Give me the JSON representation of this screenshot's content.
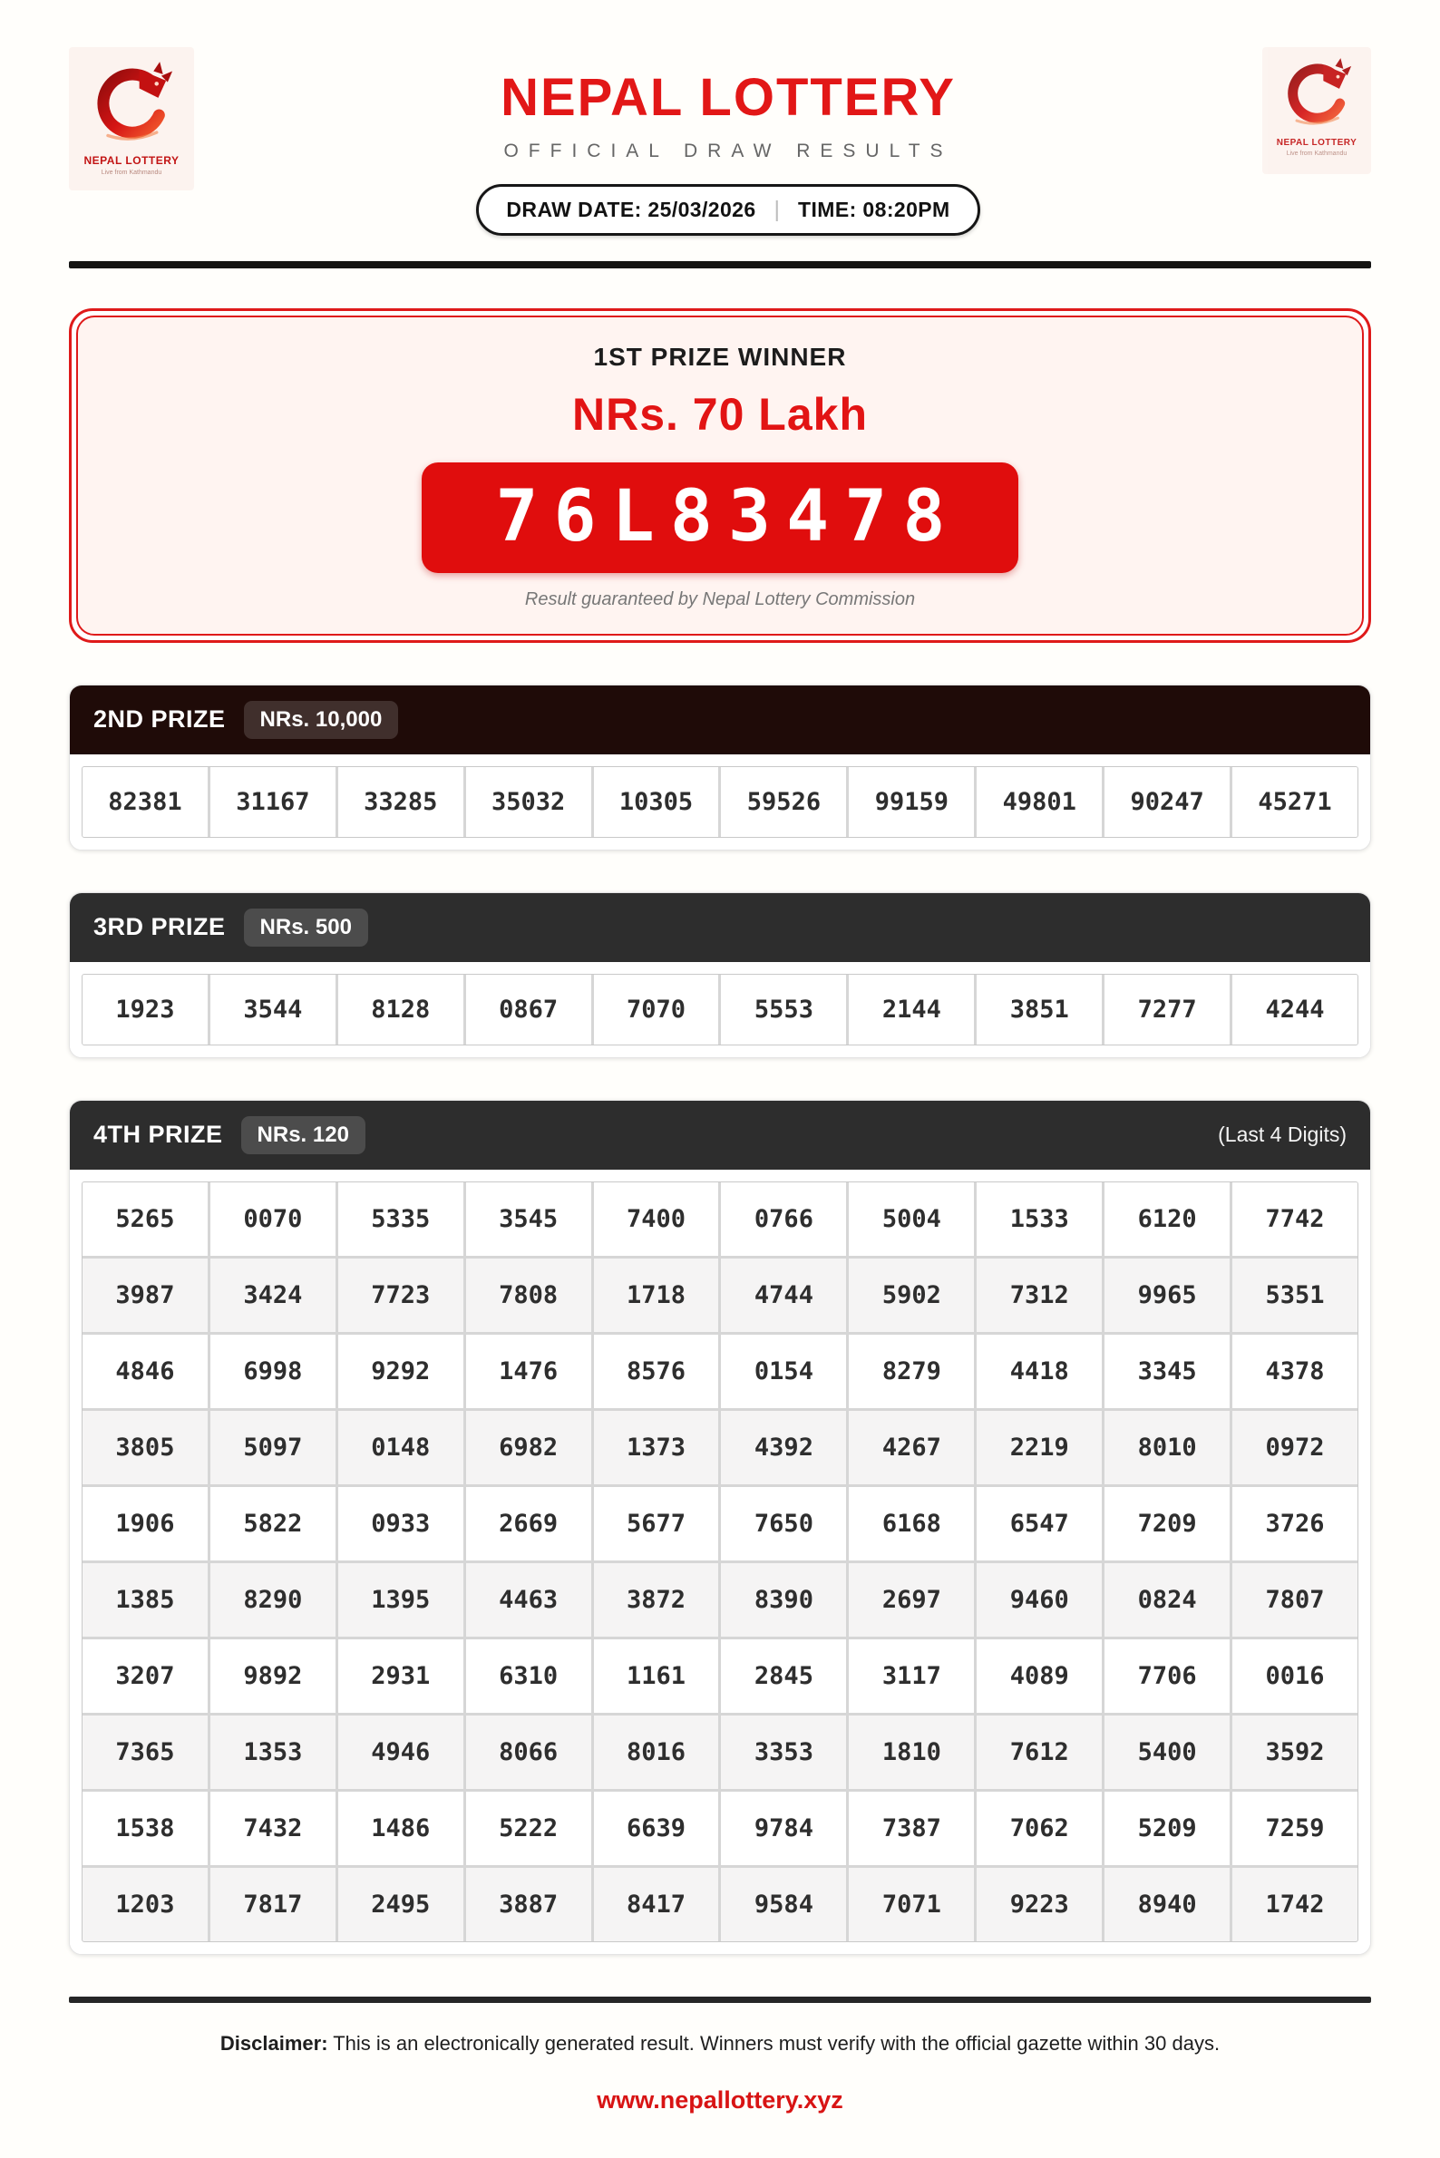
{
  "header": {
    "title": "NEPAL LOTTERY",
    "subtitle": "OFFICIAL DRAW RESULTS",
    "draw_date": "DRAW DATE: 25/03/2026",
    "separator": "|",
    "time": "TIME: 08:20PM"
  },
  "logo": {
    "brand": "NEPAL LOTTERY",
    "tagline": "Live from Kathmandu"
  },
  "colors": {
    "accent_red": "#E21717",
    "number_box_red": "#E00D0D",
    "second_header": "#1F0B08",
    "dark_header": "#2D2D2D",
    "first_prize_bg": "#FFF4F1"
  },
  "first_prize": {
    "heading": "1ST PRIZE WINNER",
    "amount": "NRs. 70 Lakh",
    "winning_number": "76L83478",
    "note": "Result guaranteed by Nepal Lottery Commission"
  },
  "second_prize": {
    "label": "2ND PRIZE",
    "amount": "NRs. 10,000",
    "numbers": [
      "82381",
      "31167",
      "33285",
      "35032",
      "10305",
      "59526",
      "99159",
      "49801",
      "90247",
      "45271"
    ]
  },
  "third_prize": {
    "label": "3RD PRIZE",
    "amount": "NRs. 500",
    "numbers": [
      "1923",
      "3544",
      "8128",
      "0867",
      "7070",
      "5553",
      "2144",
      "3851",
      "7277",
      "4244"
    ]
  },
  "fourth_prize": {
    "label": "4TH PRIZE",
    "amount": "NRs. 120",
    "qualifier": "(Last 4 Digits)",
    "rows": [
      [
        "5265",
        "0070",
        "5335",
        "3545",
        "7400",
        "0766",
        "5004",
        "1533",
        "6120",
        "7742"
      ],
      [
        "3987",
        "3424",
        "7723",
        "7808",
        "1718",
        "4744",
        "5902",
        "7312",
        "9965",
        "5351"
      ],
      [
        "4846",
        "6998",
        "9292",
        "1476",
        "8576",
        "0154",
        "8279",
        "4418",
        "3345",
        "4378"
      ],
      [
        "3805",
        "5097",
        "0148",
        "6982",
        "1373",
        "4392",
        "4267",
        "2219",
        "8010",
        "0972"
      ],
      [
        "1906",
        "5822",
        "0933",
        "2669",
        "5677",
        "7650",
        "6168",
        "6547",
        "7209",
        "3726"
      ],
      [
        "1385",
        "8290",
        "1395",
        "4463",
        "3872",
        "8390",
        "2697",
        "9460",
        "0824",
        "7807"
      ],
      [
        "3207",
        "9892",
        "2931",
        "6310",
        "1161",
        "2845",
        "3117",
        "4089",
        "7706",
        "0016"
      ],
      [
        "7365",
        "1353",
        "4946",
        "8066",
        "8016",
        "3353",
        "1810",
        "7612",
        "5400",
        "3592"
      ],
      [
        "1538",
        "7432",
        "1486",
        "5222",
        "6639",
        "9784",
        "7387",
        "7062",
        "5209",
        "7259"
      ],
      [
        "1203",
        "7817",
        "2495",
        "3887",
        "8417",
        "9584",
        "7071",
        "9223",
        "8940",
        "1742"
      ]
    ]
  },
  "footer": {
    "disclaimer_label": "Disclaimer:",
    "disclaimer_text": " This is an electronically generated result. Winners must verify with the official gazette within 30 days.",
    "website": "www.nepallottery.xyz"
  }
}
